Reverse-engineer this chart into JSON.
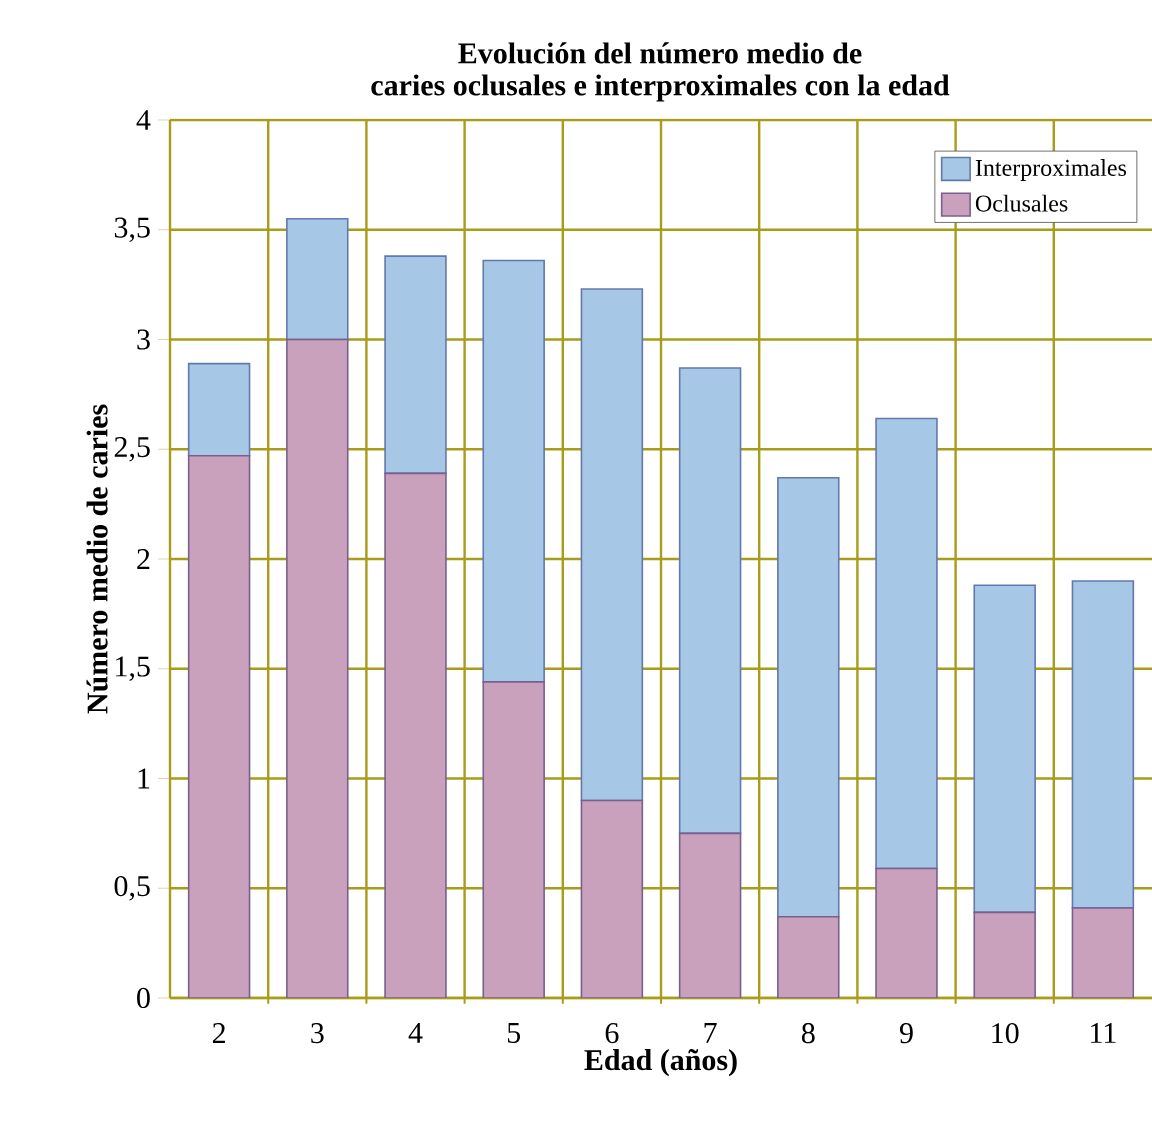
{
  "chart_data": {
    "type": "bar",
    "title": "Evolución del número medio de\ncaries oclusales e interproximales con la edad",
    "xlabel": "Edad (años)",
    "ylabel": "Número medio de caries",
    "categories": [
      "2",
      "3",
      "4",
      "5",
      "6",
      "7",
      "8",
      "9",
      "10",
      "11"
    ],
    "stacked": true,
    "series": [
      {
        "name": "Oclusales",
        "color": "#c9a1bd",
        "values": [
          2.47,
          3.0,
          2.39,
          1.44,
          0.9,
          0.75,
          0.37,
          0.59,
          0.39,
          0.41
        ]
      },
      {
        "name": "Interproximales",
        "color": "#a6c8e6",
        "values": [
          0.42,
          0.55,
          0.99,
          1.92,
          2.33,
          2.12,
          2.0,
          2.05,
          1.49,
          1.49
        ]
      }
    ],
    "ylim": [
      0,
      4
    ],
    "yticks": [
      0,
      {
        "value": 0.5,
        "label": "0,5"
      },
      1,
      {
        "value": 1.5,
        "label": "1,5"
      },
      2,
      {
        "value": 2.5,
        "label": "2,5"
      },
      3,
      {
        "value": 3.5,
        "label": "3,5"
      },
      4
    ],
    "grid": true,
    "legend": "top right"
  }
}
